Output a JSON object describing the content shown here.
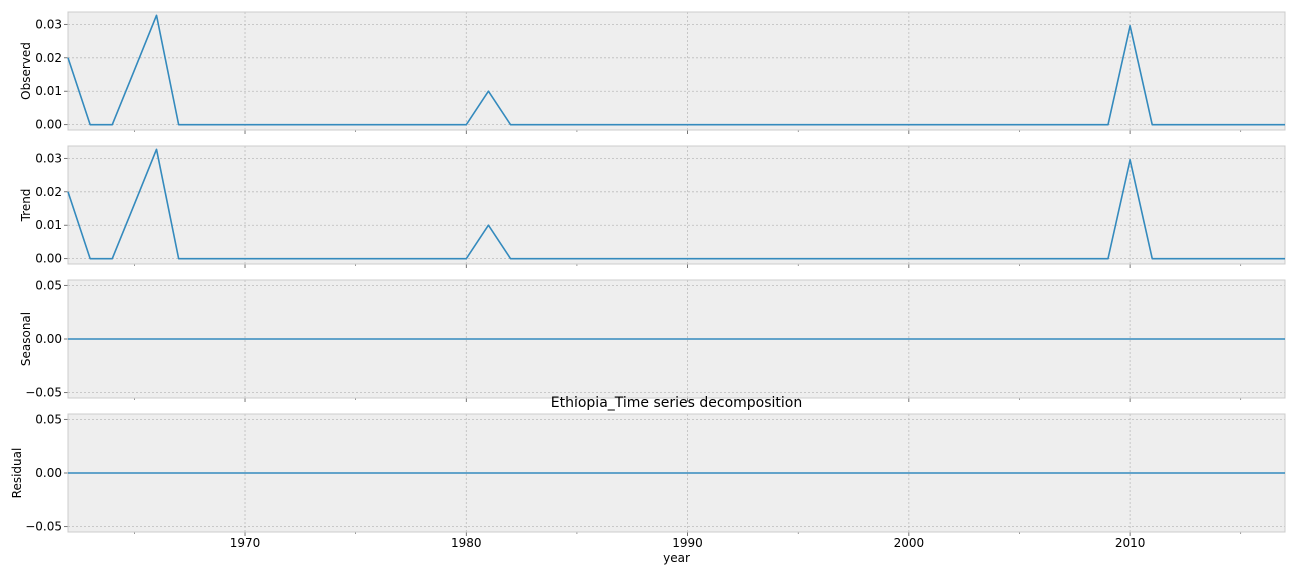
{
  "chart_data": {
    "type": "line",
    "title": "Ethiopia_Time series decomposition",
    "xlabel": "year",
    "x": [
      1962,
      1963,
      1964,
      1965,
      1966,
      1967,
      1968,
      1969,
      1970,
      1971,
      1972,
      1973,
      1974,
      1975,
      1976,
      1977,
      1978,
      1979,
      1980,
      1981,
      1982,
      1983,
      1984,
      1985,
      1986,
      1987,
      1988,
      1989,
      1990,
      1991,
      1992,
      1993,
      1994,
      1995,
      1996,
      1997,
      1998,
      1999,
      2000,
      2001,
      2002,
      2003,
      2004,
      2005,
      2006,
      2007,
      2008,
      2009,
      2010,
      2011,
      2012,
      2013,
      2014,
      2015,
      2016,
      2017
    ],
    "xlim": [
      1962,
      2017
    ],
    "xticks": [
      "1970",
      "1980",
      "1990",
      "2000",
      "2010"
    ],
    "grid": true,
    "line_color": "#348abd",
    "panels": [
      {
        "ylabel": "Observed",
        "ylim": [
          -0.0016,
          0.0337
        ],
        "yticks": [
          "0.00",
          "0.01",
          "0.02",
          "0.03"
        ],
        "values": [
          0.02,
          0.0,
          0.0,
          0.0163,
          0.0327,
          0.0,
          0.0,
          0.0,
          0.0,
          0.0,
          0.0,
          0.0,
          0.0,
          0.0,
          0.0,
          0.0,
          0.0,
          0.0,
          0.0,
          0.01,
          0.0,
          0.0,
          0.0,
          0.0,
          0.0,
          0.0,
          0.0,
          0.0,
          0.0,
          0.0,
          0.0,
          0.0,
          0.0,
          0.0,
          0.0,
          0.0,
          0.0,
          0.0,
          0.0,
          0.0,
          0.0,
          0.0,
          0.0,
          0.0,
          0.0,
          0.0,
          0.0,
          0.0,
          0.0296,
          0.0,
          0.0,
          0.0,
          0.0,
          0.0,
          0.0,
          0.0
        ]
      },
      {
        "ylabel": "Trend",
        "ylim": [
          -0.0016,
          0.0337
        ],
        "yticks": [
          "0.00",
          "0.01",
          "0.02",
          "0.03"
        ],
        "values": [
          0.02,
          0.0,
          0.0,
          0.0163,
          0.0327,
          0.0,
          0.0,
          0.0,
          0.0,
          0.0,
          0.0,
          0.0,
          0.0,
          0.0,
          0.0,
          0.0,
          0.0,
          0.0,
          0.0,
          0.01,
          0.0,
          0.0,
          0.0,
          0.0,
          0.0,
          0.0,
          0.0,
          0.0,
          0.0,
          0.0,
          0.0,
          0.0,
          0.0,
          0.0,
          0.0,
          0.0,
          0.0,
          0.0,
          0.0,
          0.0,
          0.0,
          0.0,
          0.0,
          0.0,
          0.0,
          0.0,
          0.0,
          0.0,
          0.0296,
          0.0,
          0.0,
          0.0,
          0.0,
          0.0,
          0.0,
          0.0
        ]
      },
      {
        "ylabel": "Seasonal",
        "ylim": [
          -0.055,
          0.055
        ],
        "yticks": [
          "0.05",
          "0.00",
          "−0.05"
        ],
        "values": [
          0.0,
          0.0,
          0.0,
          0.0,
          0.0,
          0.0,
          0.0,
          0.0,
          0.0,
          0.0,
          0.0,
          0.0,
          0.0,
          0.0,
          0.0,
          0.0,
          0.0,
          0.0,
          0.0,
          0.0,
          0.0,
          0.0,
          0.0,
          0.0,
          0.0,
          0.0,
          0.0,
          0.0,
          0.0,
          0.0,
          0.0,
          0.0,
          0.0,
          0.0,
          0.0,
          0.0,
          0.0,
          0.0,
          0.0,
          0.0,
          0.0,
          0.0,
          0.0,
          0.0,
          0.0,
          0.0,
          0.0,
          0.0,
          0.0,
          0.0,
          0.0,
          0.0,
          0.0,
          0.0,
          0.0,
          0.0
        ]
      },
      {
        "ylabel": "Residual",
        "ylim": [
          -0.055,
          0.055
        ],
        "yticks": [
          "0.05",
          "0.00",
          "−0.05"
        ],
        "values": [
          0.0,
          0.0,
          0.0,
          0.0,
          0.0,
          0.0,
          0.0,
          0.0,
          0.0,
          0.0,
          0.0,
          0.0,
          0.0,
          0.0,
          0.0,
          0.0,
          0.0,
          0.0,
          0.0,
          0.0,
          0.0,
          0.0,
          0.0,
          0.0,
          0.0,
          0.0,
          0.0,
          0.0,
          0.0,
          0.0,
          0.0,
          0.0,
          0.0,
          0.0,
          0.0,
          0.0,
          0.0,
          0.0,
          0.0,
          0.0,
          0.0,
          0.0,
          0.0,
          0.0,
          0.0,
          0.0,
          0.0,
          0.0,
          0.0,
          0.0,
          0.0,
          0.0,
          0.0,
          0.0,
          0.0,
          0.0
        ]
      }
    ]
  }
}
